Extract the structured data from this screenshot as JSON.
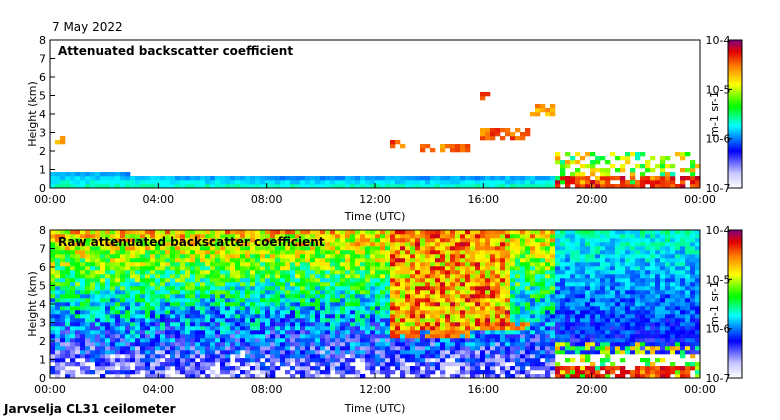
{
  "header": {
    "date": "7 May 2022"
  },
  "footer": {
    "label": "Jarvselja CL31 ceilometer"
  },
  "chart_data": [
    {
      "type": "heatmap",
      "title": "Attenuated backscatter coefficient",
      "xlabel": "Time (UTC)",
      "ylabel": "Height (km)",
      "x_ticks": [
        "00:00",
        "04:00",
        "08:00",
        "12:00",
        "16:00",
        "20:00",
        "00:00"
      ],
      "x_range_hours": [
        0,
        24
      ],
      "y_ticks": [
        0,
        1,
        2,
        3,
        4,
        5,
        6,
        7,
        8
      ],
      "ylim": [
        0,
        8
      ],
      "colorbar": {
        "label": "m-1 sr-1",
        "ticks": [
          "10-4",
          "10-5",
          "10-6",
          "10-7"
        ],
        "log_range": [
          -7,
          -4
        ]
      },
      "features": [
        {
          "kind": "boundary_layer",
          "start_h": 0.0,
          "end_h": 18.6,
          "top_km": [
            0.9,
            0.8,
            0.65,
            0.6,
            0.55,
            0.6,
            0.55,
            0.6,
            0.65
          ]
        },
        {
          "kind": "cloud",
          "start_h": 0.1,
          "end_h": 0.5,
          "height_km": 2.6,
          "level": 0.85
        },
        {
          "kind": "cloud",
          "start_h": 12.6,
          "end_h": 13.2,
          "height_km": 2.4,
          "level": 0.9
        },
        {
          "kind": "cloud",
          "start_h": 13.6,
          "end_h": 15.5,
          "height_km": 2.2,
          "level": 0.88
        },
        {
          "kind": "cloud",
          "start_h": 15.8,
          "end_h": 16.3,
          "height_km": 5.0,
          "level": 0.95
        },
        {
          "kind": "cloud",
          "start_h": 15.8,
          "end_h": 17.7,
          "height_km": 2.9,
          "level": 0.9
        },
        {
          "kind": "cloud",
          "start_h": 17.8,
          "end_h": 18.6,
          "height_km": 4.2,
          "level": 0.85
        },
        {
          "kind": "cloud",
          "start_h": 18.6,
          "end_h": 24.0,
          "height_km": 0.4,
          "level": 0.95
        }
      ]
    },
    {
      "type": "heatmap",
      "title": "Raw attenuated backscatter coefficient",
      "xlabel": "Time (UTC)",
      "ylabel": "Height (km)",
      "x_ticks": [
        "00:00",
        "04:00",
        "08:00",
        "12:00",
        "16:00",
        "20:00",
        "00:00"
      ],
      "x_range_hours": [
        0,
        24
      ],
      "y_ticks": [
        0,
        1,
        2,
        3,
        4,
        5,
        6,
        7,
        8
      ],
      "ylim": [
        0,
        8
      ],
      "colorbar": {
        "label": "m-1 sr-1",
        "ticks": [
          "10-4",
          "10-5",
          "10-6",
          "10-7"
        ],
        "log_range": [
          -7,
          -4
        ]
      },
      "features": [
        {
          "kind": "noise_gradient",
          "start_h": 0.0,
          "end_h": 18.6
        },
        {
          "kind": "noise_burst",
          "start_h": 12.6,
          "end_h": 17.0,
          "level": 0.95
        },
        {
          "kind": "cloud",
          "start_h": 12.6,
          "end_h": 15.5,
          "height_km": 2.4,
          "level": 0.9
        },
        {
          "kind": "cloud",
          "start_h": 15.8,
          "end_h": 17.7,
          "height_km": 2.8,
          "level": 0.9
        },
        {
          "kind": "cloud",
          "start_h": 18.6,
          "end_h": 24.0,
          "height_km": 0.4,
          "level": 0.95
        },
        {
          "kind": "clear_low",
          "start_h": 18.6,
          "end_h": 24.0
        }
      ]
    }
  ]
}
